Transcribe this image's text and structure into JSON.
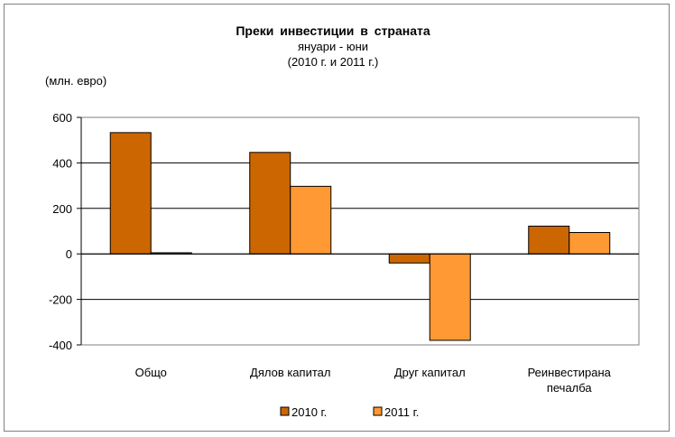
{
  "chart_data": {
    "type": "bar",
    "title": "Преки  инвестиции  в страната",
    "subtitle_line1": "януари - юни",
    "subtitle_line2": "(2010 г. и 2011  г.)",
    "unit_label": "(млн. евро)",
    "categories": [
      "Общо",
      "Дялов капитал",
      "Друг капитал",
      "Реинвестирана печалба"
    ],
    "category_lines": [
      [
        "Общо"
      ],
      [
        "Дялов капитал"
      ],
      [
        "Друг капитал"
      ],
      [
        "Реинвестирана",
        "печалба"
      ]
    ],
    "series": [
      {
        "name": "2010 г.",
        "values": [
          533,
          446,
          -40,
          122
        ],
        "color": "#CC6600"
      },
      {
        "name": "2011 г.",
        "values": [
          5,
          297,
          -380,
          94
        ],
        "color": "#FF9933"
      }
    ],
    "ylim": [
      -400,
      600
    ],
    "yticks": [
      600,
      400,
      200,
      0,
      -200,
      -400
    ],
    "ytick_labels": [
      "600",
      "400",
      "200",
      "0",
      "-200",
      "-400"
    ],
    "grid": true,
    "legend_position": "bottom"
  }
}
